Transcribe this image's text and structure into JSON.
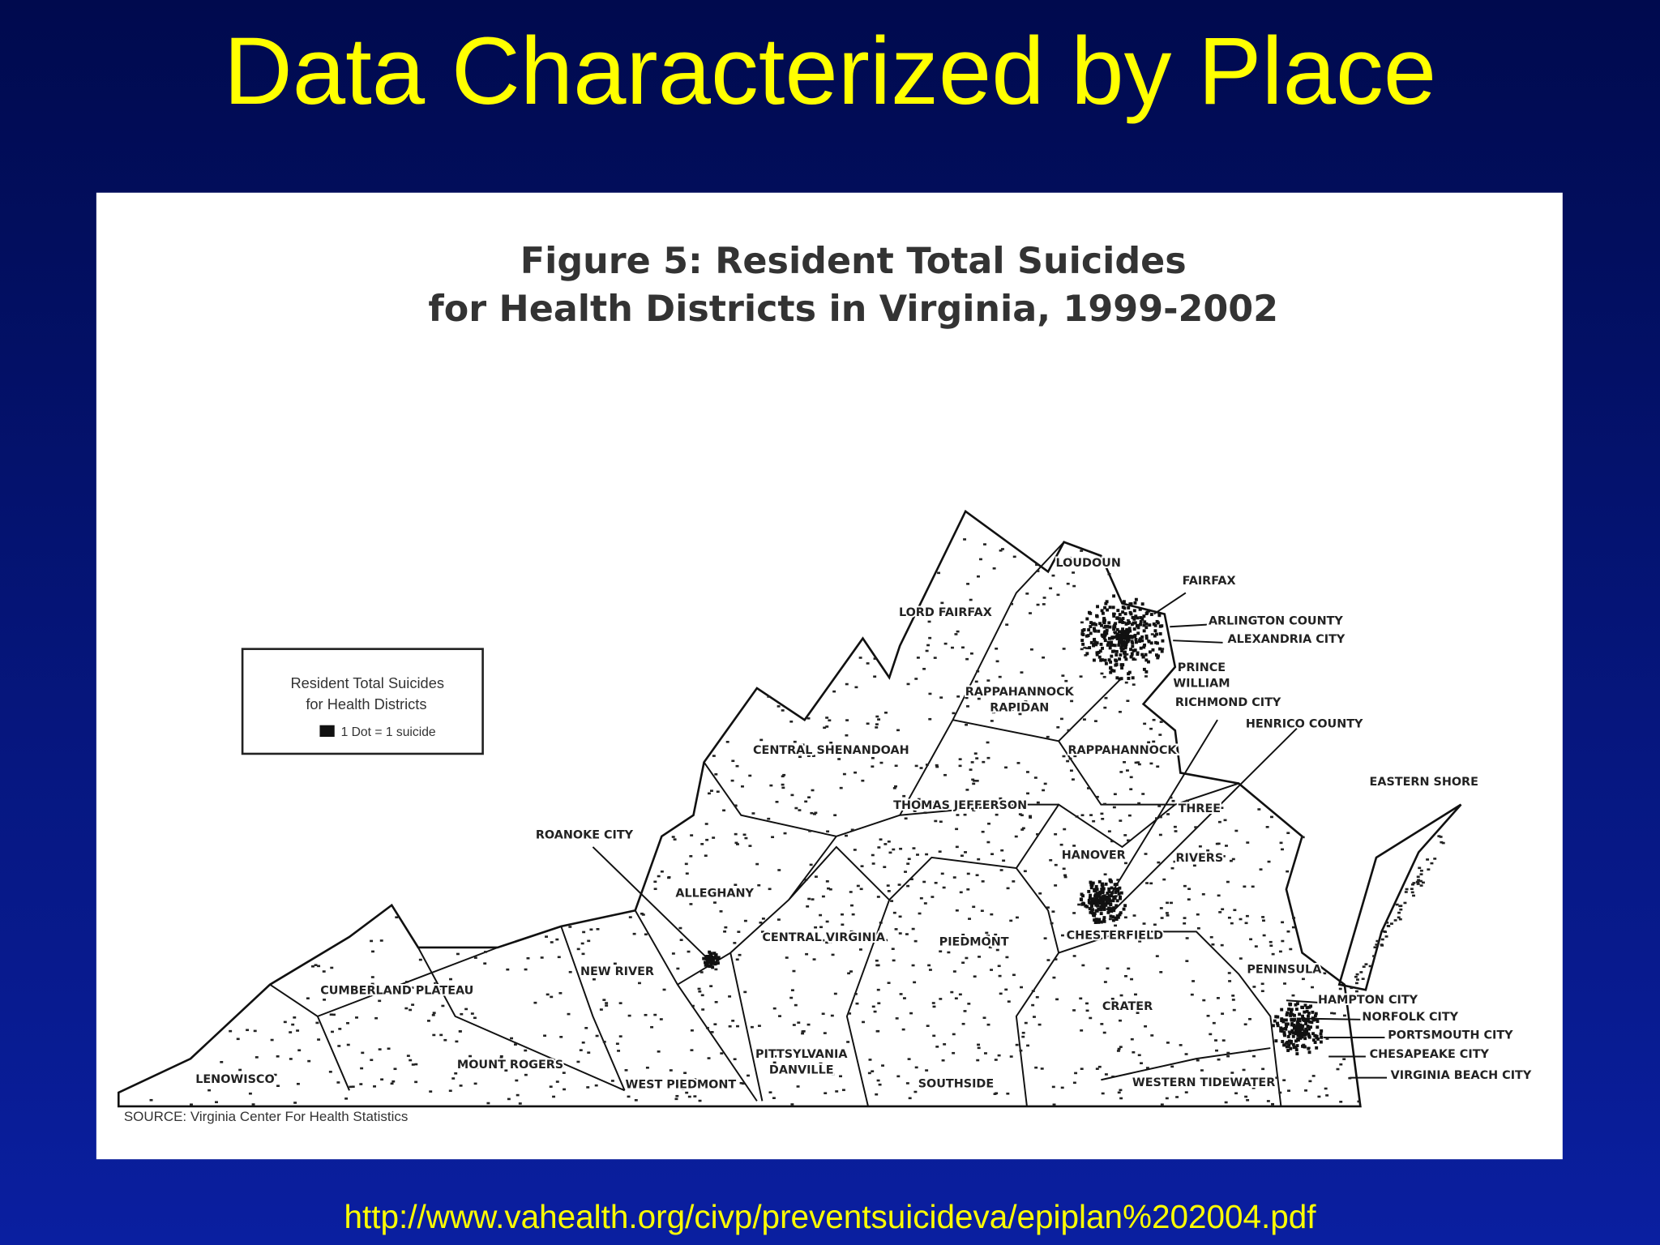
{
  "slide": {
    "title": "Data Characterized by Place",
    "url": "http://www.vahealth.org/civp/preventsuicideva/epiplan%202004.pdf"
  },
  "figure": {
    "title_lines": [
      "Figure 5: Resident Total Suicides",
      "for Health Districts in Virginia, 1999-2002"
    ],
    "legend": {
      "title_lines": [
        "Resident Total Suicides",
        "for Health Districts"
      ],
      "key": "1 Dot = 1 suicide"
    },
    "source": "SOURCE: Virginia Center For Health Statistics",
    "districts": [
      [
        "LOUDOUN"
      ],
      [
        "FAIRFAX"
      ],
      [
        "ARLINGTON COUNTY"
      ],
      [
        "ALEXANDRIA CITY"
      ],
      [
        "PRINCE",
        "WILLIAM"
      ],
      [
        "RICHMOND CITY"
      ],
      [
        "HENRICO COUNTY"
      ],
      [
        "LORD FAIRFAX"
      ],
      [
        "RAPPAHANNOCK",
        "RAPIDAN"
      ],
      [
        "CENTRAL SHENANDOAH"
      ],
      [
        "RAPPAHANNOCK"
      ],
      [
        "EASTERN SHORE"
      ],
      [
        "THOMAS JEFFERSON"
      ],
      [
        "THREE"
      ],
      [
        "RIVERS"
      ],
      [
        "ROANOKE CITY"
      ],
      [
        "HANOVER"
      ],
      [
        "ALLEGHANY"
      ],
      [
        "CENTRAL VIRGINIA"
      ],
      [
        "PIEDMONT"
      ],
      [
        "CHESTERFIELD"
      ],
      [
        "NEW RIVER"
      ],
      [
        "PENINSULA"
      ],
      [
        "CUMBERLAND PLATEAU"
      ],
      [
        "HAMPTON CITY"
      ],
      [
        "CRATER"
      ],
      [
        "NORFOLK CITY"
      ],
      [
        "PORTSMOUTH CITY"
      ],
      [
        "MOUNT ROGERS"
      ],
      [
        "PITTSYLVANIA",
        "DANVILLE"
      ],
      [
        "CHESAPEAKE CITY"
      ],
      [
        "LENOWISCO"
      ],
      [
        "WEST PIEDMONT"
      ],
      [
        "SOUTHSIDE"
      ],
      [
        "WESTERN TIDEWATER"
      ],
      [
        "VIRGINIA BEACH CITY"
      ]
    ]
  }
}
